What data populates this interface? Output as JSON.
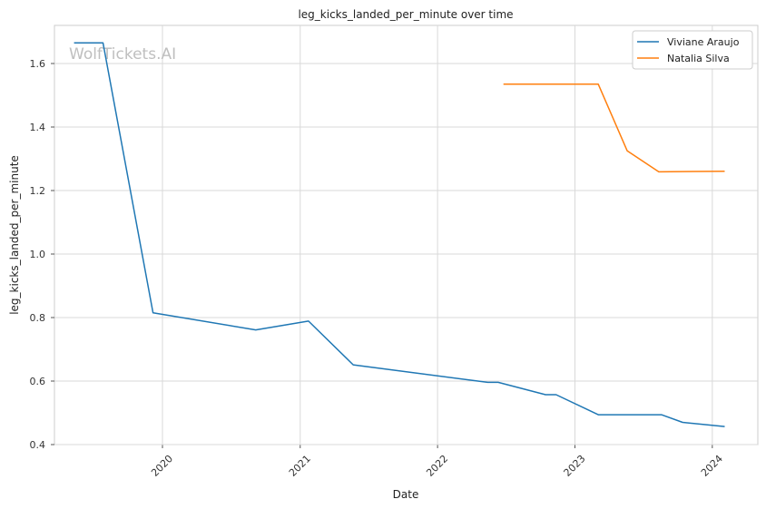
{
  "chart_data": {
    "type": "line",
    "title": "leg_kicks_landed_per_minute over time",
    "xlabel": "Date",
    "ylabel": "leg_kicks_landed_per_minute",
    "watermark": "WolfTickets.AI",
    "x_range": [
      "2019-03-20",
      "2024-05-01"
    ],
    "ylim": [
      0.4,
      1.72
    ],
    "x_ticks": [
      "2020",
      "2021",
      "2022",
      "2023",
      "2024"
    ],
    "y_ticks": [
      "0.4",
      "0.6",
      "0.8",
      "1.0",
      "1.2",
      "1.4",
      "1.6"
    ],
    "grid": true,
    "legend_position": "top-right",
    "colors": {
      "Viviane Araujo": "#1f77b4",
      "Natalia Silva": "#ff7f0e"
    },
    "series": [
      {
        "name": "Viviane Araujo",
        "x": [
          "2019-05-11",
          "2019-07-27",
          "2019-12-07",
          "2020-09-05",
          "2021-01-23",
          "2021-05-22",
          "2022-05-14",
          "2022-06-11",
          "2022-10-15",
          "2022-11-12",
          "2023-03-04",
          "2023-08-19",
          "2023-10-14",
          "2024-02-03"
        ],
        "y": [
          1.665,
          1.665,
          0.815,
          0.761,
          0.789,
          0.651,
          0.596,
          0.596,
          0.557,
          0.557,
          0.494,
          0.494,
          0.47,
          0.457
        ]
      },
      {
        "name": "Natalia Silva",
        "x": [
          "2022-06-25",
          "2023-03-04",
          "2023-05-20",
          "2023-08-12",
          "2024-02-03"
        ],
        "y": [
          1.535,
          1.535,
          1.325,
          1.259,
          1.261
        ]
      }
    ]
  }
}
